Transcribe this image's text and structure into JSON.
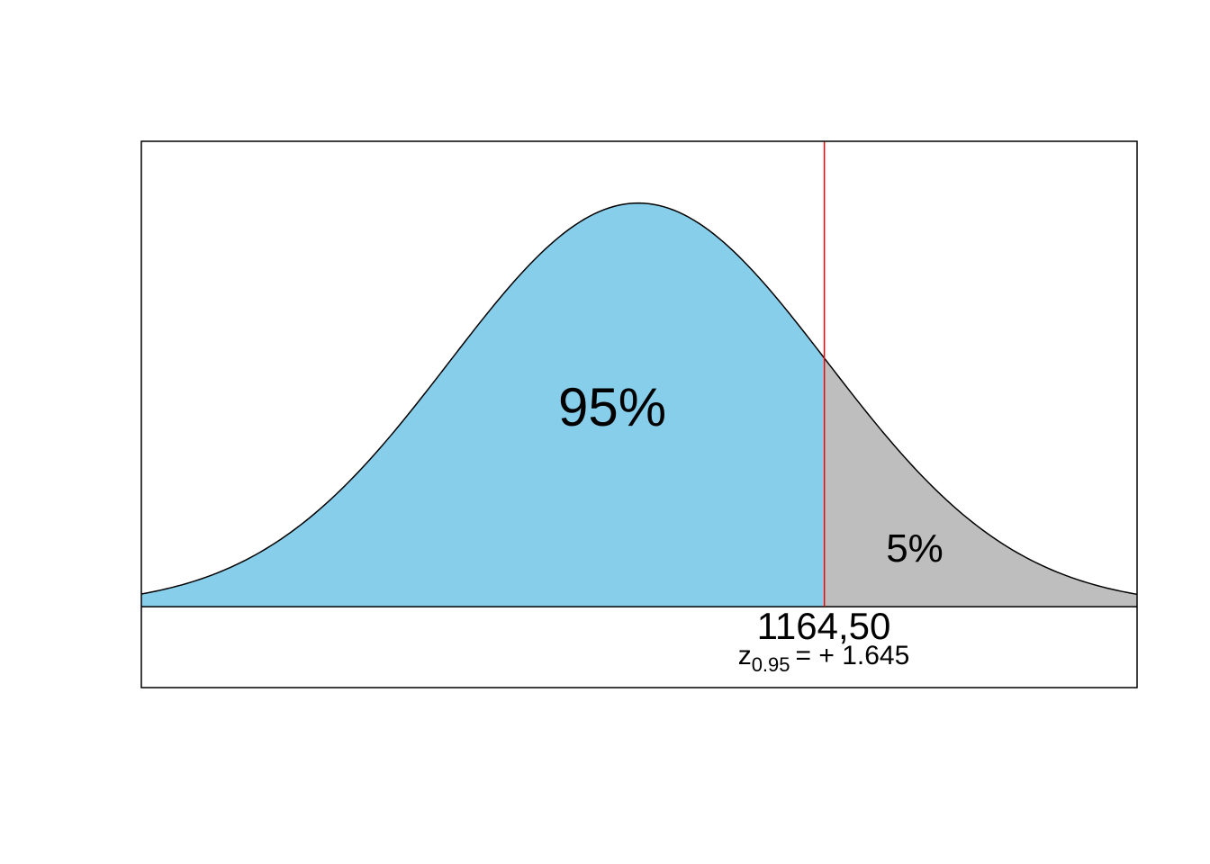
{
  "chart_data": {
    "type": "normal-area",
    "values": [
      95,
      5
    ],
    "value_labels": [
      "95%",
      "5%"
    ],
    "colors": [
      "#87ceeb",
      "#bebebe"
    ],
    "xlim": [
      -2.63,
      2.64
    ],
    "ylim": [
      -0.08,
      0.46
    ],
    "cutoff": {
      "x": 0.985,
      "color": "#ff0000",
      "label": "1164,50",
      "z_symbol": "z",
      "z_subscript": "0.95",
      "z_value_text": "= + 1.645"
    }
  }
}
